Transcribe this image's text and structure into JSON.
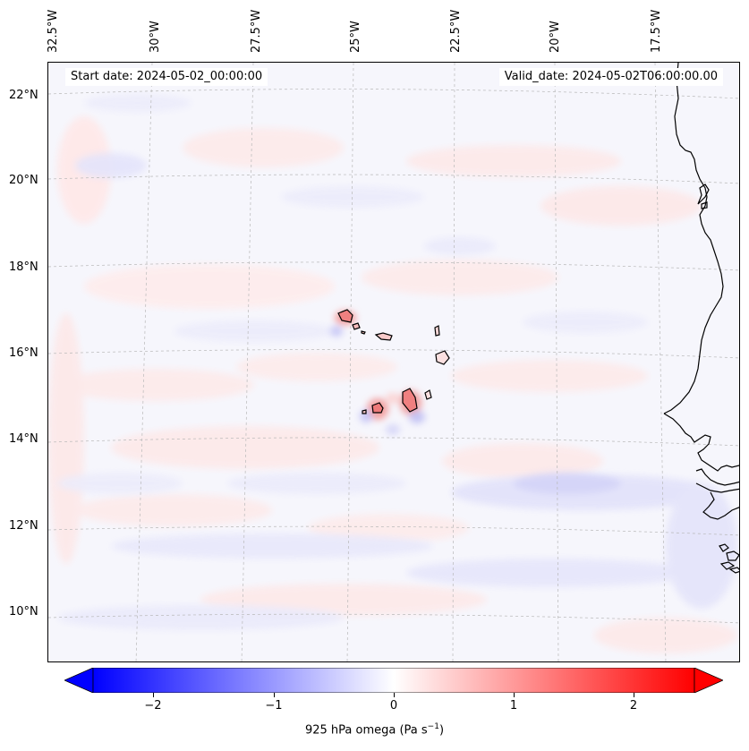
{
  "map": {
    "start_date": "Start date: 2024-05-02_00:00:00",
    "valid_date": "Valid_date: 2024-05-02T06:00:00.00",
    "lon_labels": [
      "32.5°W",
      "30°W",
      "27.5°W",
      "25°W",
      "22.5°W",
      "20°W",
      "17.5°W"
    ],
    "lat_labels": [
      "22°N",
      "20°N",
      "18°N",
      "16°N",
      "14°N",
      "12°N",
      "10°N"
    ],
    "gridlines": true,
    "projection": "Lambert conformal",
    "field": "925 hPa omega",
    "land_features": [
      "Cape Verde islands",
      "West African coastline"
    ]
  },
  "colorbar": {
    "label": "925 hPa omega (Pa s",
    "label_sup": "−1",
    "label_tail": ")",
    "ticks": [
      "−2",
      "−1",
      "0",
      "1",
      "2"
    ],
    "tick_values": [
      -2,
      -1,
      0,
      1,
      2
    ],
    "range": [
      -2.5,
      2.5
    ],
    "extend": "both",
    "colormap": "bwr",
    "colors": {
      "low": "#0000ff",
      "mid": "#ffffff",
      "high": "#ff0000"
    }
  }
}
